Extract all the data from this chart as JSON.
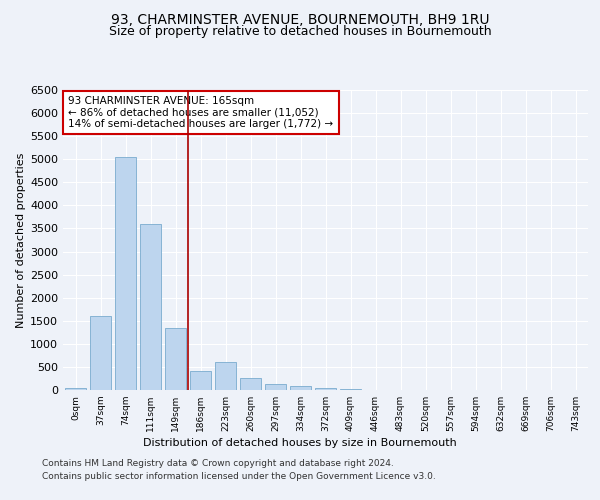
{
  "title": "93, CHARMINSTER AVENUE, BOURNEMOUTH, BH9 1RU",
  "subtitle": "Size of property relative to detached houses in Bournemouth",
  "xlabel": "Distribution of detached houses by size in Bournemouth",
  "ylabel": "Number of detached properties",
  "footer_lines": [
    "Contains HM Land Registry data © Crown copyright and database right 2024.",
    "Contains public sector information licensed under the Open Government Licence v3.0."
  ],
  "annotation_line1": "93 CHARMINSTER AVENUE: 165sqm",
  "annotation_line2": "← 86% of detached houses are smaller (11,052)",
  "annotation_line3": "14% of semi-detached houses are larger (1,772) →",
  "bar_labels": [
    "0sqm",
    "37sqm",
    "74sqm",
    "111sqm",
    "149sqm",
    "186sqm",
    "223sqm",
    "260sqm",
    "297sqm",
    "334sqm",
    "372sqm",
    "409sqm",
    "446sqm",
    "483sqm",
    "520sqm",
    "557sqm",
    "594sqm",
    "632sqm",
    "669sqm",
    "706sqm",
    "743sqm"
  ],
  "bar_values": [
    50,
    1600,
    5050,
    3600,
    1350,
    420,
    600,
    270,
    130,
    80,
    50,
    20,
    10,
    5,
    3,
    2,
    1,
    1,
    0,
    0,
    0
  ],
  "bar_color": "#bdd5ee",
  "bar_edge_color": "#7aabcf",
  "vline_x": 4.5,
  "vline_color": "#aa0000",
  "ylim": [
    0,
    6500
  ],
  "yticks": [
    0,
    500,
    1000,
    1500,
    2000,
    2500,
    3000,
    3500,
    4000,
    4500,
    5000,
    5500,
    6000,
    6500
  ],
  "annotation_box_color": "#cc0000",
  "bg_color": "#eef2f9",
  "plot_bg_color": "#eef2f9",
  "grid_color": "#ffffff",
  "title_fontsize": 10,
  "subtitle_fontsize": 9,
  "axis_label_fontsize": 8,
  "tick_fontsize": 8,
  "annot_fontsize": 7.5
}
